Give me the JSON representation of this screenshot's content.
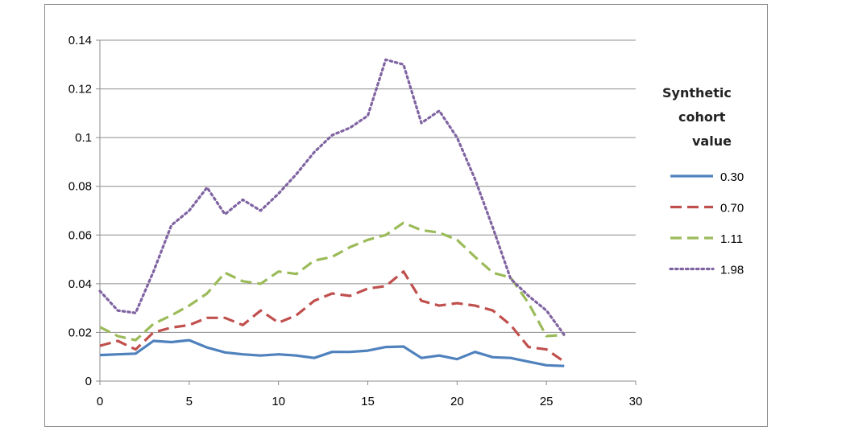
{
  "chart_data": {
    "type": "line",
    "title": "",
    "xlabel": "",
    "ylabel": "",
    "xlim": [
      0,
      30
    ],
    "ylim": [
      0,
      0.14
    ],
    "x_ticks": [
      "0",
      "5",
      "10",
      "15",
      "20",
      "25",
      "30"
    ],
    "y_ticks": [
      "0",
      "0.02",
      "0.04",
      "0.06",
      "0.08",
      "0.1",
      "0.12",
      "0.14"
    ],
    "grid": "horizontal",
    "legend_title": [
      "Synthetic",
      "cohort",
      "value"
    ],
    "legend_position": "right",
    "series": [
      {
        "name": "0.30",
        "color": "#4f81bd",
        "style": "solid",
        "x": [
          0,
          1,
          2,
          3,
          4,
          5,
          6,
          7,
          8,
          9,
          10,
          11,
          12,
          13,
          14,
          15,
          16,
          17,
          18,
          19,
          20,
          21,
          22,
          23,
          24,
          25,
          26
        ],
        "y": [
          0.0107,
          0.011,
          0.0113,
          0.0165,
          0.016,
          0.0168,
          0.0138,
          0.0118,
          0.011,
          0.0105,
          0.011,
          0.0105,
          0.0095,
          0.012,
          0.012,
          0.0125,
          0.014,
          0.0142,
          0.0095,
          0.0105,
          0.009,
          0.012,
          0.0098,
          0.0095,
          0.008,
          0.0065,
          0.0062
        ]
      },
      {
        "name": "0.70",
        "color": "#c0504d",
        "style": "dash",
        "x": [
          0,
          1,
          2,
          3,
          4,
          5,
          6,
          7,
          8,
          9,
          10,
          11,
          12,
          13,
          14,
          15,
          16,
          17,
          18,
          19,
          20,
          21,
          22,
          23,
          24,
          25,
          26
        ],
        "y": [
          0.0145,
          0.0165,
          0.013,
          0.02,
          0.022,
          0.023,
          0.026,
          0.026,
          0.023,
          0.029,
          0.024,
          0.027,
          0.033,
          0.036,
          0.035,
          0.038,
          0.039,
          0.045,
          0.033,
          0.031,
          0.032,
          0.031,
          0.029,
          0.023,
          0.014,
          0.013,
          0.008
        ]
      },
      {
        "name": "1.11",
        "color": "#9bbb59",
        "style": "dash",
        "x": [
          0,
          1,
          2,
          3,
          4,
          5,
          6,
          7,
          8,
          9,
          10,
          11,
          12,
          13,
          14,
          15,
          16,
          17,
          18,
          19,
          20,
          21,
          22,
          23,
          24,
          25,
          26
        ],
        "y": [
          0.0222,
          0.0185,
          0.0168,
          0.0235,
          0.027,
          0.031,
          0.036,
          0.0445,
          0.041,
          0.04,
          0.045,
          0.044,
          0.0495,
          0.051,
          0.055,
          0.058,
          0.06,
          0.065,
          0.062,
          0.061,
          0.058,
          0.051,
          0.0445,
          0.0425,
          0.032,
          0.0185,
          0.019
        ]
      },
      {
        "name": "1.98",
        "color": "#8064a2",
        "style": "dot",
        "x": [
          0,
          1,
          2,
          3,
          4,
          5,
          6,
          7,
          8,
          9,
          10,
          11,
          12,
          13,
          14,
          15,
          16,
          17,
          18,
          19,
          20,
          21,
          22,
          23,
          24,
          25,
          26
        ],
        "y": [
          0.037,
          0.029,
          0.028,
          0.045,
          0.064,
          0.07,
          0.0795,
          0.0685,
          0.0745,
          0.07,
          0.077,
          0.085,
          0.094,
          0.101,
          0.104,
          0.109,
          0.132,
          0.13,
          0.106,
          0.111,
          0.1,
          0.083,
          0.063,
          0.042,
          0.035,
          0.029,
          0.019
        ]
      }
    ]
  }
}
